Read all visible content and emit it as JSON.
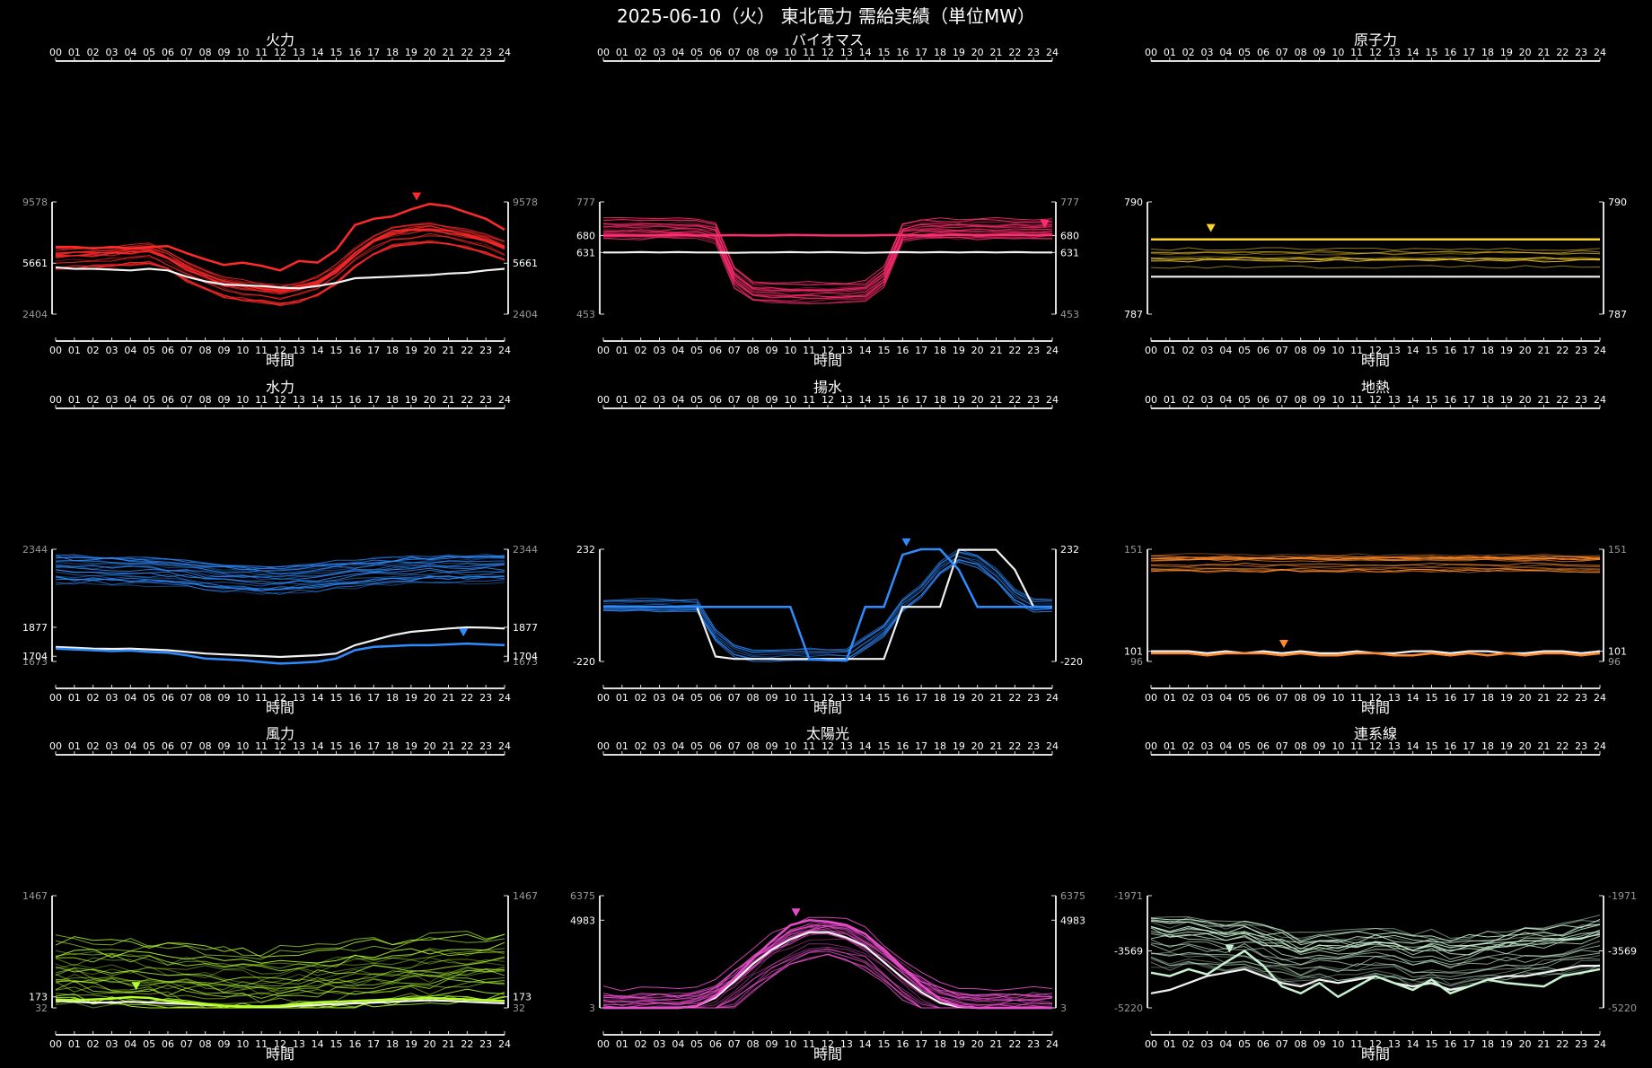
{
  "title": "2025-06-10（火） 東北電力 需給実績（単位MW）",
  "hours": [
    "00",
    "01",
    "02",
    "03",
    "04",
    "05",
    "06",
    "07",
    "08",
    "09",
    "10",
    "11",
    "12",
    "13",
    "14",
    "15",
    "16",
    "17",
    "18",
    "19",
    "20",
    "21",
    "22",
    "23",
    "24"
  ],
  "xlabel": "時間",
  "chart_data": [
    {
      "type": "line",
      "title": "火力",
      "color": "#ff2a2a",
      "ylim": [
        2404,
        9578
      ],
      "ticks": [
        2404,
        5661,
        9578
      ],
      "marker_hour": 19.3,
      "highlight": {
        "name": "",
        "values": [
          6700,
          6700,
          6600,
          6700,
          6600,
          6700,
          6750,
          6300,
          5900,
          5550,
          5700,
          5500,
          5200,
          5800,
          5700,
          6500,
          8100,
          8500,
          8650,
          9100,
          9450,
          9300,
          8900,
          8500,
          7800
        ]
      },
      "current": {
        "name": "",
        "values": [
          5400,
          5300,
          5300,
          5250,
          5200,
          5300,
          5200,
          4800,
          4500,
          4300,
          4250,
          4200,
          4100,
          4050,
          4200,
          4400,
          4700,
          4750,
          4800,
          4850,
          4900,
          5000,
          5050,
          5200,
          5300
        ]
      },
      "band": {
        "base": [
          5900,
          5950,
          6000,
          6050,
          6150,
          6250,
          5800,
          5100,
          4600,
          4100,
          3900,
          3750,
          3600,
          3800,
          4200,
          4900,
          6000,
          6800,
          7300,
          7500,
          7600,
          7450,
          7200,
          6900,
          6400
        ],
        "spread": 1500,
        "count": 24
      }
    },
    {
      "type": "line",
      "title": "バイオマス",
      "color": "#ff2d6f",
      "ylim": [
        453,
        777
      ],
      "ticks": [
        453,
        631,
        680,
        777
      ],
      "marker_hour": 23.6,
      "highlight": {
        "name": "",
        "values": [
          680,
          680,
          680,
          681,
          682,
          680,
          680,
          681,
          680,
          680,
          682,
          681,
          680,
          680,
          680,
          681,
          682,
          680,
          681,
          682,
          680,
          681,
          682,
          681,
          681
        ]
      },
      "current": {
        "name": "",
        "values": [
          631,
          631,
          632,
          631,
          632,
          631,
          631,
          630,
          631,
          631,
          632,
          631,
          632,
          631,
          630,
          631,
          632,
          631,
          632,
          631,
          632,
          631,
          632,
          631,
          631
        ]
      },
      "band": {
        "base": [
          700,
          700,
          700,
          700,
          700,
          700,
          690,
          560,
          520,
          515,
          515,
          515,
          515,
          515,
          520,
          560,
          690,
          700,
          700,
          700,
          700,
          700,
          700,
          700,
          700
        ],
        "spread": 60,
        "count": 22
      }
    },
    {
      "type": "line",
      "title": "原子力",
      "color": "#ffd42a",
      "ylim": [
        787,
        790
      ],
      "ticks": [
        787,
        790
      ],
      "marker_hour": 3.2,
      "highlight": {
        "name": "",
        "values": [
          789,
          789,
          789,
          789,
          789,
          789,
          789,
          789,
          789,
          789,
          789,
          789,
          789,
          789,
          789,
          789,
          789,
          789,
          789,
          789,
          789,
          789,
          789,
          789,
          789
        ]
      },
      "current": {
        "name": "",
        "values": [
          788,
          788,
          788,
          788,
          788,
          788,
          788,
          788,
          788,
          788,
          788,
          788,
          788,
          788,
          788,
          788,
          788,
          788,
          788,
          788,
          788,
          788,
          788,
          788,
          788
        ]
      },
      "band": {
        "base": [
          788.5,
          788.5,
          788.5,
          788.5,
          788.5,
          788.5,
          788.5,
          788.5,
          788.5,
          788.5,
          788.5,
          788.5,
          788.5,
          788.5,
          788.5,
          788.5,
          788.5,
          788.5,
          788.5,
          788.5,
          788.5,
          788.5,
          788.5,
          788.5,
          788.5
        ],
        "spread": 0.5,
        "count": 10
      }
    },
    {
      "type": "line",
      "title": "水力",
      "color": "#2e8cff",
      "ylim": [
        1673,
        2344
      ],
      "ticks": [
        1673,
        1704,
        1877,
        2344
      ],
      "marker_hour": 21.8,
      "highlight": {
        "name": "",
        "values": [
          1750,
          1745,
          1740,
          1735,
          1738,
          1730,
          1725,
          1710,
          1690,
          1685,
          1680,
          1670,
          1660,
          1665,
          1672,
          1690,
          1740,
          1760,
          1765,
          1770,
          1770,
          1775,
          1780,
          1775,
          1770
        ]
      },
      "current": {
        "name": "",
        "values": [
          1760,
          1755,
          1750,
          1748,
          1750,
          1745,
          1740,
          1730,
          1720,
          1715,
          1710,
          1705,
          1700,
          1705,
          1710,
          1720,
          1770,
          1800,
          1830,
          1850,
          1860,
          1870,
          1877,
          1875,
          1870
        ]
      },
      "band": {
        "base": [
          2230,
          2225,
          2225,
          2220,
          2220,
          2215,
          2210,
          2200,
          2185,
          2175,
          2170,
          2165,
          2165,
          2170,
          2175,
          2190,
          2200,
          2210,
          2220,
          2225,
          2230,
          2230,
          2230,
          2235,
          2235
        ],
        "spread": 180,
        "count": 22
      }
    },
    {
      "type": "line",
      "title": "揚水",
      "color": "#2e8cff",
      "ylim": [
        -220,
        232
      ],
      "ticks": [
        -220,
        232
      ],
      "marker_hour": 16.2,
      "highlight": {
        "name": "",
        "values": [
          0,
          0,
          0,
          0,
          0,
          0,
          0,
          0,
          0,
          0,
          0,
          -210,
          -215,
          -215,
          0,
          0,
          210,
          232,
          232,
          150,
          0,
          0,
          0,
          0,
          0
        ]
      },
      "current": {
        "name": "",
        "values": [
          0,
          0,
          0,
          0,
          0,
          0,
          -200,
          -210,
          -210,
          -210,
          -210,
          -210,
          -210,
          -210,
          -210,
          -210,
          0,
          0,
          0,
          230,
          230,
          230,
          150,
          0,
          0
        ]
      },
      "band": {
        "base": [
          0,
          0,
          0,
          0,
          0,
          0,
          -120,
          -180,
          -200,
          -200,
          -200,
          -200,
          -200,
          -200,
          -150,
          -100,
          0,
          60,
          150,
          200,
          180,
          120,
          40,
          0,
          0
        ],
        "spread": 60,
        "count": 10
      }
    },
    {
      "type": "line",
      "title": "地熱",
      "color": "#ff8a2a",
      "ylim": [
        96,
        151
      ],
      "ticks": [
        96,
        101,
        151
      ],
      "marker_hour": 7.1,
      "highlight": {
        "name": "",
        "values": [
          100,
          100,
          100,
          99,
          100,
          100,
          100,
          99,
          100,
          99,
          99,
          100,
          100,
          99,
          99,
          100,
          99,
          100,
          99,
          100,
          99,
          100,
          100,
          99,
          100
        ]
      },
      "current": {
        "name": "",
        "values": [
          101,
          101,
          101,
          100,
          101,
          100,
          101,
          100,
          101,
          100,
          100,
          101,
          100,
          100,
          101,
          101,
          100,
          101,
          101,
          100,
          100,
          101,
          101,
          100,
          101
        ]
      },
      "band": {
        "base": [
          144,
          144,
          144,
          144,
          144,
          144,
          144,
          144,
          144,
          144,
          144,
          144,
          144,
          144,
          144,
          144,
          144,
          144,
          144,
          144,
          144,
          144,
          144,
          144,
          144
        ],
        "spread": 9,
        "count": 16
      }
    },
    {
      "type": "line",
      "title": "風力",
      "color": "#b6ff2a",
      "ylim": [
        32,
        1467
      ],
      "ticks": [
        32,
        173,
        1467
      ],
      "marker_hour": 4.3,
      "highlight": {
        "name": "",
        "values": [
          140,
          130,
          140,
          150,
          170,
          160,
          120,
          100,
          80,
          60,
          50,
          50,
          60,
          80,
          100,
          110,
          120,
          130,
          140,
          150,
          160,
          150,
          140,
          130,
          120
        ]
      },
      "current": {
        "name": "",
        "values": [
          120,
          110,
          100,
          100,
          110,
          100,
          90,
          80,
          70,
          60,
          50,
          45,
          50,
          60,
          70,
          80,
          90,
          100,
          110,
          120,
          130,
          120,
          110,
          100,
          90
        ]
      },
      "band": {
        "base": [
          500,
          500,
          480,
          470,
          460,
          450,
          430,
          410,
          390,
          370,
          360,
          350,
          360,
          380,
          400,
          420,
          440,
          460,
          480,
          500,
          520,
          530,
          540,
          550,
          560
        ],
        "spread": 900,
        "count": 26
      }
    },
    {
      "type": "line",
      "title": "太陽光",
      "color": "#e64cc8",
      "ylim": [
        3,
        6375
      ],
      "ticks": [
        3,
        4983,
        6375
      ],
      "marker_hour": 10.3,
      "highlight": {
        "name": "",
        "values": [
          3,
          3,
          3,
          3,
          3,
          120,
          700,
          1700,
          2800,
          3800,
          4700,
          4983,
          4900,
          4700,
          4200,
          3300,
          2300,
          1300,
          500,
          100,
          3,
          3,
          3,
          3,
          3
        ]
      },
      "current": {
        "name": "",
        "values": [
          3,
          3,
          3,
          3,
          3,
          100,
          600,
          1500,
          2500,
          3300,
          3900,
          4300,
          4300,
          4000,
          3500,
          2600,
          1700,
          900,
          300,
          60,
          3,
          3,
          3,
          3,
          3
        ]
      },
      "band": {
        "base": [
          3,
          3,
          3,
          3,
          3,
          90,
          500,
          1300,
          2200,
          3000,
          3600,
          4000,
          4100,
          3900,
          3400,
          2600,
          1700,
          900,
          350,
          60,
          3,
          3,
          3,
          3,
          3
        ],
        "spread": 2400,
        "count": 24
      }
    },
    {
      "type": "line",
      "title": "連系線",
      "color": "#c9f2d2",
      "ylim": [
        -5220,
        -1971
      ],
      "ticks": [
        -5220,
        -3569,
        -1971
      ],
      "marker_hour": 4.2,
      "highlight": {
        "name": "",
        "values": [
          -4200,
          -4300,
          -4100,
          -4250,
          -3900,
          -3569,
          -4000,
          -4600,
          -4800,
          -4500,
          -4900,
          -4600,
          -4300,
          -4500,
          -4700,
          -4400,
          -4800,
          -4600,
          -4400,
          -4500,
          -4550,
          -4600,
          -4300,
          -4200,
          -4100
        ]
      },
      "current": {
        "name": "",
        "values": [
          -4800,
          -4700,
          -4500,
          -4300,
          -4200,
          -4100,
          -4300,
          -4500,
          -4600,
          -4400,
          -4500,
          -4400,
          -4300,
          -4500,
          -4600,
          -4500,
          -4700,
          -4600,
          -4400,
          -4300,
          -4300,
          -4200,
          -4100,
          -4000,
          -4000
        ]
      },
      "band": {
        "base": [
          -3200,
          -3300,
          -3250,
          -3300,
          -3400,
          -3350,
          -3500,
          -3650,
          -3800,
          -3700,
          -3750,
          -3700,
          -3600,
          -3650,
          -3800,
          -3750,
          -3900,
          -3800,
          -3700,
          -3650,
          -3600,
          -3550,
          -3500,
          -3400,
          -3300
        ],
        "spread": 1500,
        "count": 24
      }
    }
  ]
}
